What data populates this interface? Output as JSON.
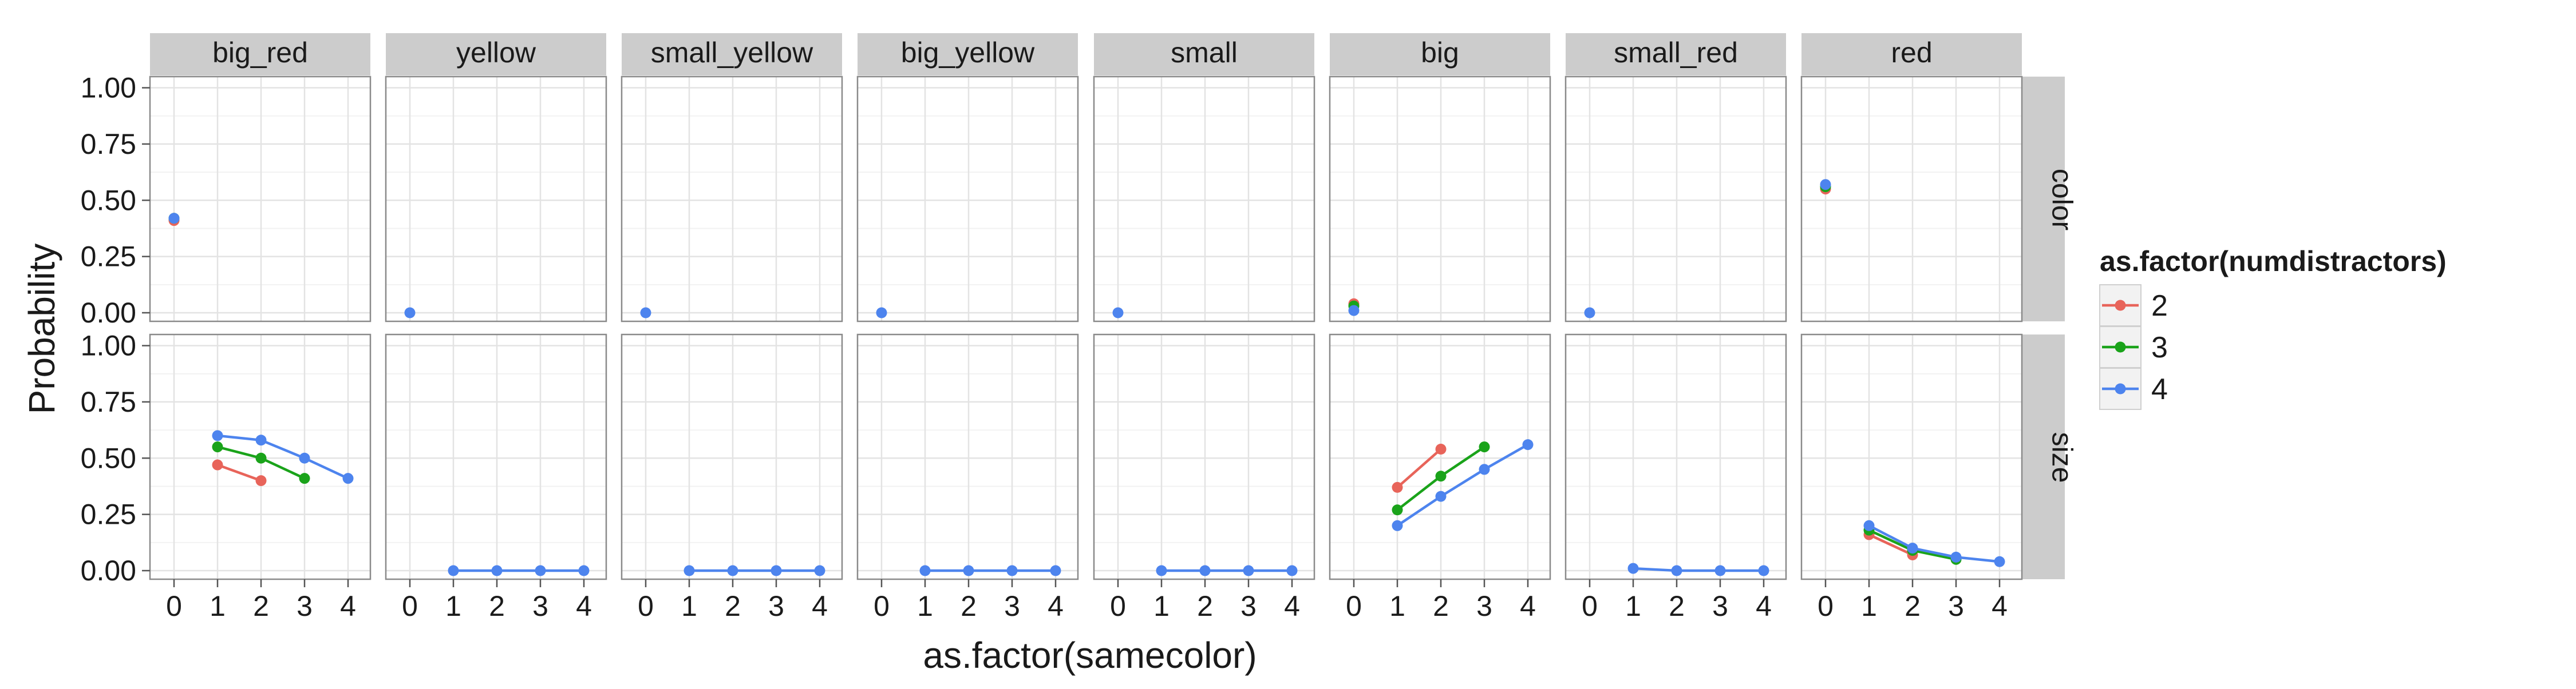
{
  "chart_data": {
    "type": "line",
    "xlabel": "as.factor(samecolor)",
    "ylabel": "Probability",
    "x_ticks": [
      "0",
      "1",
      "2",
      "3",
      "4"
    ],
    "ylim": [
      -0.05,
      1.05
    ],
    "y_ticks": [
      "0.00",
      "0.25",
      "0.50",
      "0.75",
      "1.00"
    ],
    "grid": true,
    "legend": {
      "title": "as.factor(numdistractors)",
      "position": "right",
      "entries": [
        {
          "label": "2",
          "color": "#E8645A"
        },
        {
          "label": "3",
          "color": "#1AA31A"
        },
        {
          "label": "4",
          "color": "#4D84EE"
        }
      ]
    },
    "columns": [
      "big_red",
      "yellow",
      "small_yellow",
      "big_yellow",
      "small",
      "big",
      "small_red",
      "red"
    ],
    "rows": [
      "color",
      "size"
    ],
    "panels": [
      {
        "row": "color",
        "col": "big_red",
        "series": [
          {
            "name": "2",
            "x": [
              0
            ],
            "y": [
              0.41
            ]
          },
          {
            "name": "3",
            "x": [
              0
            ],
            "y": [
              0.42
            ]
          },
          {
            "name": "4",
            "x": [
              0
            ],
            "y": [
              0.42
            ]
          }
        ]
      },
      {
        "row": "color",
        "col": "yellow",
        "series": [
          {
            "name": "4",
            "x": [
              0
            ],
            "y": [
              0.0
            ]
          }
        ]
      },
      {
        "row": "color",
        "col": "small_yellow",
        "series": [
          {
            "name": "4",
            "x": [
              0
            ],
            "y": [
              0.0
            ]
          }
        ]
      },
      {
        "row": "color",
        "col": "big_yellow",
        "series": [
          {
            "name": "4",
            "x": [
              0
            ],
            "y": [
              0.0
            ]
          }
        ]
      },
      {
        "row": "color",
        "col": "small",
        "series": [
          {
            "name": "4",
            "x": [
              0
            ],
            "y": [
              0.0
            ]
          }
        ]
      },
      {
        "row": "color",
        "col": "big",
        "series": [
          {
            "name": "2",
            "x": [
              0
            ],
            "y": [
              0.04
            ]
          },
          {
            "name": "3",
            "x": [
              0
            ],
            "y": [
              0.03
            ]
          },
          {
            "name": "4",
            "x": [
              0
            ],
            "y": [
              0.01
            ]
          }
        ]
      },
      {
        "row": "color",
        "col": "small_red",
        "series": [
          {
            "name": "4",
            "x": [
              0
            ],
            "y": [
              0.0
            ]
          }
        ]
      },
      {
        "row": "color",
        "col": "red",
        "series": [
          {
            "name": "2",
            "x": [
              0
            ],
            "y": [
              0.55
            ]
          },
          {
            "name": "3",
            "x": [
              0
            ],
            "y": [
              0.56
            ]
          },
          {
            "name": "4",
            "x": [
              0
            ],
            "y": [
              0.57
            ]
          }
        ]
      },
      {
        "row": "size",
        "col": "big_red",
        "series": [
          {
            "name": "2",
            "x": [
              1,
              2
            ],
            "y": [
              0.47,
              0.4
            ]
          },
          {
            "name": "3",
            "x": [
              1,
              2,
              3
            ],
            "y": [
              0.55,
              0.5,
              0.41
            ]
          },
          {
            "name": "4",
            "x": [
              1,
              2,
              3,
              4
            ],
            "y": [
              0.6,
              0.58,
              0.5,
              0.41
            ]
          }
        ]
      },
      {
        "row": "size",
        "col": "yellow",
        "series": [
          {
            "name": "4",
            "x": [
              1,
              2,
              3,
              4
            ],
            "y": [
              0.0,
              0.0,
              0.0,
              0.0
            ]
          }
        ]
      },
      {
        "row": "size",
        "col": "small_yellow",
        "series": [
          {
            "name": "4",
            "x": [
              1,
              2,
              3,
              4
            ],
            "y": [
              0.0,
              0.0,
              0.0,
              0.0
            ]
          }
        ]
      },
      {
        "row": "size",
        "col": "big_yellow",
        "series": [
          {
            "name": "4",
            "x": [
              1,
              2,
              3,
              4
            ],
            "y": [
              0.0,
              0.0,
              0.0,
              0.0
            ]
          }
        ]
      },
      {
        "row": "size",
        "col": "small",
        "series": [
          {
            "name": "4",
            "x": [
              1,
              2,
              3,
              4
            ],
            "y": [
              0.0,
              0.0,
              0.0,
              0.0
            ]
          }
        ]
      },
      {
        "row": "size",
        "col": "big",
        "series": [
          {
            "name": "2",
            "x": [
              1,
              2
            ],
            "y": [
              0.37,
              0.54
            ]
          },
          {
            "name": "3",
            "x": [
              1,
              2,
              3
            ],
            "y": [
              0.27,
              0.42,
              0.55
            ]
          },
          {
            "name": "4",
            "x": [
              1,
              2,
              3,
              4
            ],
            "y": [
              0.2,
              0.33,
              0.45,
              0.56
            ]
          }
        ]
      },
      {
        "row": "size",
        "col": "small_red",
        "series": [
          {
            "name": "4",
            "x": [
              1,
              2,
              3,
              4
            ],
            "y": [
              0.01,
              0.0,
              0.0,
              0.0
            ]
          }
        ]
      },
      {
        "row": "size",
        "col": "red",
        "series": [
          {
            "name": "2",
            "x": [
              1,
              2
            ],
            "y": [
              0.16,
              0.07
            ]
          },
          {
            "name": "3",
            "x": [
              1,
              2,
              3
            ],
            "y": [
              0.18,
              0.09,
              0.05
            ]
          },
          {
            "name": "4",
            "x": [
              1,
              2,
              3,
              4
            ],
            "y": [
              0.2,
              0.1,
              0.06,
              0.04
            ]
          }
        ]
      }
    ]
  }
}
